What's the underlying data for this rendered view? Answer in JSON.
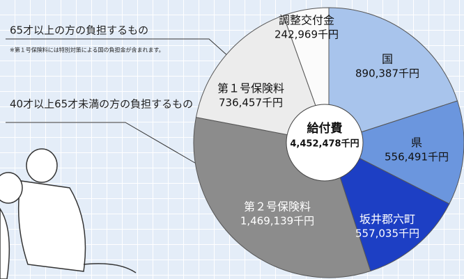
{
  "chart_data": {
    "type": "pie",
    "categories": [
      "国",
      "県",
      "坂井郡六町",
      "第２号保険料",
      "第１号保険料",
      "調整交付金"
    ],
    "values": [
      890387,
      556491,
      557035,
      1469139,
      736457,
      242969
    ],
    "value_labels": [
      "890,387千円",
      "556,491千円",
      "557,035千円",
      "1,469,139千円",
      "736,457千円",
      "242,969千円"
    ],
    "colors": [
      "#a8c4ec",
      "#6b96de",
      "#1d3fc4",
      "#8c8c8c",
      "#ececec",
      "#fbfbfb"
    ],
    "center_title": "給付費",
    "center_value": "4,452,478千円",
    "annotations": [
      "65才以上の方の負担するもの",
      "※第１号保険料には特別対策による国の負担金が含まれます。",
      "40才以上65才未満の方の負担するもの"
    ]
  }
}
